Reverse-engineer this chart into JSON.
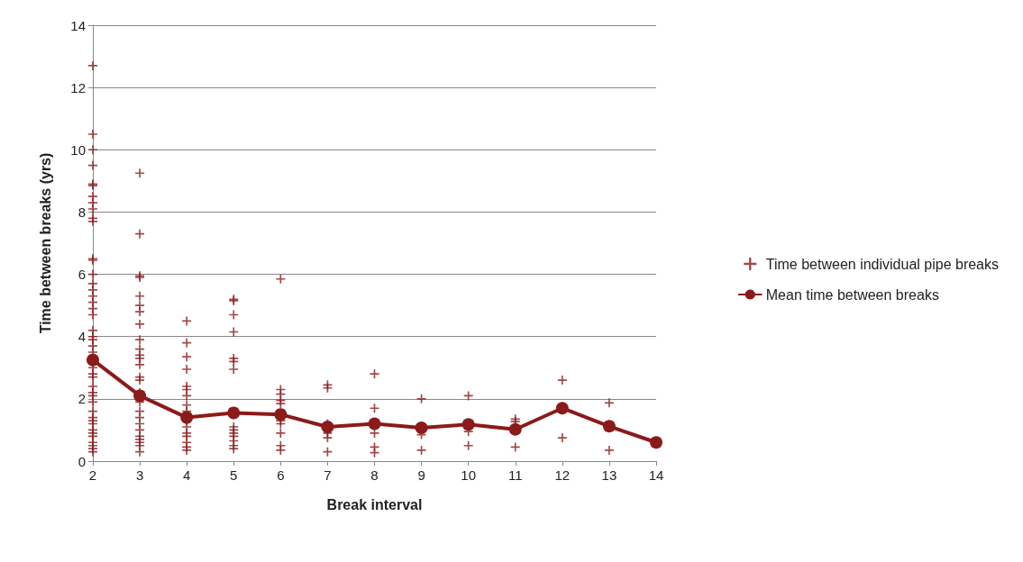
{
  "chart_data": {
    "type": "scatter",
    "xlabel": "Break interval",
    "ylabel": "Time between breaks (yrs)",
    "xlim": [
      2,
      14
    ],
    "xticks": [
      2,
      3,
      4,
      5,
      6,
      7,
      8,
      9,
      10,
      11,
      12,
      13,
      14
    ],
    "ylim": [
      0,
      14
    ],
    "yticks": [
      0,
      2,
      4,
      6,
      8,
      10,
      12,
      14
    ],
    "grid": "y",
    "legend": "right",
    "series": [
      {
        "name": "Time between individual pipe breaks",
        "marker": "cross",
        "color": "#8b1a1a",
        "x": [
          2,
          2,
          2,
          2,
          2,
          2,
          2,
          2,
          2,
          2,
          2,
          2,
          2,
          2,
          2,
          2,
          2,
          2,
          2,
          2,
          2,
          2,
          2,
          2,
          2,
          2,
          2,
          2,
          2,
          2,
          2,
          2,
          2,
          2,
          2,
          2,
          2,
          2,
          2,
          2,
          2,
          2,
          2,
          3,
          3,
          3,
          3,
          3,
          3,
          3,
          3,
          3,
          3,
          3,
          3,
          3,
          3,
          3,
          3,
          3,
          3,
          3,
          3,
          3,
          3,
          3,
          3,
          3,
          3,
          4,
          4,
          4,
          4,
          4,
          4,
          4,
          4,
          4,
          4,
          4,
          4,
          4,
          4,
          4,
          4,
          5,
          5,
          5,
          5,
          5,
          5,
          5,
          5,
          5,
          5,
          5,
          5,
          5,
          5,
          6,
          6,
          6,
          6,
          6,
          6,
          6,
          6,
          6,
          6,
          6,
          7,
          7,
          7,
          7,
          7,
          7,
          7,
          8,
          8,
          8,
          8,
          8,
          9,
          9,
          9,
          10,
          10,
          10,
          11,
          11,
          11,
          12,
          12,
          13,
          13
        ],
        "values": [
          12.7,
          10.5,
          10.0,
          9.5,
          8.9,
          8.85,
          8.5,
          8.3,
          8.1,
          7.8,
          7.7,
          6.5,
          6.45,
          6.0,
          5.7,
          5.5,
          5.3,
          5.1,
          4.9,
          4.7,
          4.2,
          4.0,
          3.9,
          3.7,
          3.5,
          3.0,
          2.8,
          2.7,
          2.4,
          2.2,
          2.1,
          1.9,
          1.6,
          1.4,
          1.3,
          1.2,
          1.0,
          0.9,
          0.8,
          0.6,
          0.5,
          0.4,
          0.3,
          9.25,
          7.3,
          5.95,
          5.9,
          5.3,
          5.0,
          4.8,
          4.4,
          3.9,
          3.6,
          3.4,
          3.3,
          3.1,
          2.7,
          2.6,
          2.2,
          1.9,
          1.6,
          1.4,
          1.2,
          1.0,
          0.8,
          0.7,
          0.6,
          0.5,
          0.3,
          4.5,
          3.8,
          3.35,
          2.95,
          2.4,
          2.3,
          2.1,
          1.8,
          1.6,
          1.3,
          1.1,
          0.9,
          0.8,
          0.6,
          0.45,
          0.35,
          5.2,
          5.15,
          4.7,
          4.15,
          3.3,
          3.2,
          2.95,
          1.1,
          1.0,
          0.9,
          0.8,
          0.65,
          0.5,
          0.4,
          5.85,
          2.3,
          2.15,
          1.95,
          1.85,
          1.5,
          1.3,
          1.2,
          0.9,
          0.5,
          0.35,
          2.45,
          2.35,
          1.2,
          1.0,
          0.9,
          0.75,
          0.3,
          2.8,
          1.7,
          0.9,
          0.45,
          0.27,
          2.0,
          0.85,
          0.35,
          2.1,
          0.95,
          0.5,
          1.35,
          1.27,
          0.45,
          2.6,
          0.75,
          1.87,
          0.35
        ]
      },
      {
        "name": "Mean time between breaks",
        "type": "line",
        "marker": "circle",
        "line_style": "solid",
        "color": "#8b1a1a",
        "x": [
          2,
          3,
          4,
          5,
          6,
          7,
          8,
          9,
          10,
          11,
          12,
          13,
          14
        ],
        "values": [
          3.25,
          2.1,
          1.4,
          1.55,
          1.5,
          1.1,
          1.2,
          1.07,
          1.18,
          1.02,
          1.7,
          1.12,
          0.6
        ]
      }
    ]
  }
}
